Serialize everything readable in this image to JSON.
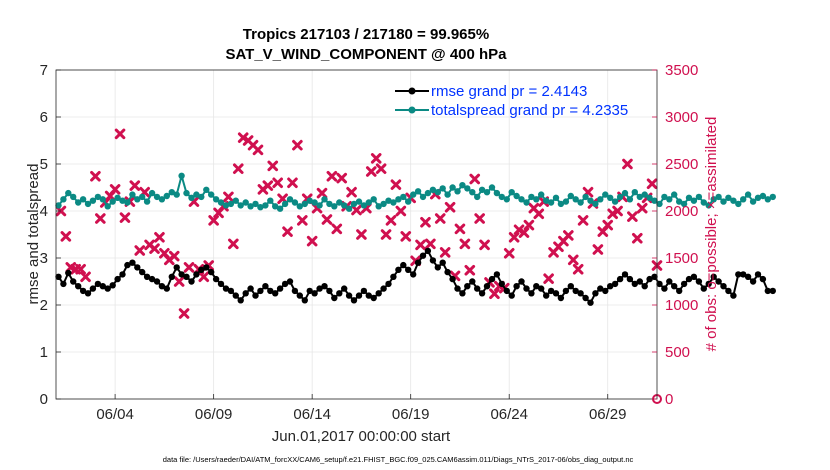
{
  "chart_data": {
    "type": "line",
    "title": "Tropics 217103 / 217180 = 99.965%",
    "subtitle": "SAT_V_WIND_COMPONENT @ 400 hPa",
    "xlabel": "Jun.01,2017 00:00:00 start",
    "ylabel": "rmse and totalspread",
    "ylabel_right": "# of obs: o=possible; ×=assimilated",
    "footnote": "data file: /Users/raeder/DAI/ATM_forcXX/CAM6_setup/f.e21.FHIST_BGC.f09_025.CAM6assim.011/Diags_NTrS_2017-06/obs_diag_output.nc",
    "xlim": [
      1,
      31.5
    ],
    "ylim": [
      0,
      7
    ],
    "ylim_right": [
      0,
      3500
    ],
    "x_ticks": [
      4,
      9,
      14,
      19,
      24,
      29
    ],
    "x_tick_labels": [
      "06/04",
      "06/09",
      "06/14",
      "06/19",
      "06/24",
      "06/29"
    ],
    "y_ticks": [
      0,
      1,
      2,
      3,
      4,
      5,
      6,
      7
    ],
    "y_ticks_right": [
      0,
      500,
      1000,
      1500,
      2000,
      2500,
      3000,
      3500
    ],
    "grid": true,
    "legend_position": "top-right",
    "colors": {
      "rmse": "#000000",
      "totalspread": "#0b8a84",
      "obs": "#d0104f",
      "legend_text": "#0033ff"
    },
    "series": [
      {
        "name": "rmse grand pr = 2.4143",
        "axis": "left",
        "x_start": 1.125,
        "x_step": 0.25,
        "values": [
          2.6,
          2.45,
          2.68,
          2.5,
          2.4,
          2.3,
          2.25,
          2.35,
          2.45,
          2.4,
          2.35,
          2.42,
          2.55,
          2.65,
          2.85,
          2.9,
          2.8,
          2.7,
          2.6,
          2.55,
          2.5,
          2.4,
          2.35,
          2.6,
          2.8,
          2.65,
          2.6,
          2.5,
          2.65,
          2.75,
          2.8,
          2.7,
          2.55,
          2.45,
          2.35,
          2.3,
          2.2,
          2.1,
          2.25,
          2.35,
          2.2,
          2.3,
          2.4,
          2.3,
          2.25,
          2.35,
          2.45,
          2.5,
          2.3,
          2.2,
          2.1,
          2.3,
          2.25,
          2.35,
          2.4,
          2.3,
          2.15,
          2.25,
          2.35,
          2.2,
          2.1,
          2.2,
          2.3,
          2.2,
          2.15,
          2.25,
          2.35,
          2.45,
          2.6,
          2.75,
          2.85,
          2.75,
          2.65,
          2.9,
          3.05,
          3.15,
          2.95,
          2.8,
          2.9,
          2.7,
          2.55,
          2.35,
          2.25,
          2.4,
          2.5,
          2.35,
          2.25,
          2.4,
          2.55,
          2.65,
          2.45,
          2.3,
          2.2,
          2.4,
          2.5,
          2.35,
          2.25,
          2.4,
          2.35,
          2.2,
          2.3,
          2.25,
          2.15,
          2.3,
          2.4,
          2.3,
          2.25,
          2.15,
          2.05,
          2.25,
          2.35,
          2.3,
          2.4,
          2.45,
          2.55,
          2.65,
          2.55,
          2.45,
          2.5,
          2.4,
          2.55,
          2.6,
          2.45,
          2.35,
          2.5,
          2.4,
          2.3,
          2.45,
          2.55,
          2.6,
          2.5,
          2.35,
          2.45,
          2.6,
          2.5,
          2.4,
          2.3,
          2.2,
          2.65,
          2.65,
          2.6,
          2.5,
          2.65,
          2.55,
          2.3,
          2.3
        ],
        "marker": "dot"
      },
      {
        "name": "totalspread grand pr = 4.2335",
        "axis": "left",
        "x_start": 1.125,
        "x_step": 0.25,
        "values": [
          4.12,
          4.25,
          4.38,
          4.3,
          4.18,
          4.25,
          4.15,
          4.22,
          4.3,
          4.25,
          4.1,
          4.2,
          4.28,
          4.22,
          4.18,
          4.35,
          4.25,
          4.3,
          4.2,
          4.38,
          4.3,
          4.25,
          4.32,
          4.4,
          4.35,
          4.75,
          4.38,
          4.28,
          4.35,
          4.3,
          4.45,
          4.35,
          4.25,
          4.18,
          4.12,
          4.15,
          4.22,
          4.12,
          4.18,
          4.1,
          4.15,
          4.08,
          4.12,
          4.22,
          4.1,
          4.05,
          4.15,
          4.25,
          4.18,
          4.1,
          4.15,
          4.22,
          4.18,
          4.12,
          4.25,
          4.15,
          4.1,
          4.18,
          4.12,
          4.05,
          4.15,
          4.2,
          4.12,
          4.18,
          4.25,
          4.1,
          4.15,
          4.22,
          4.18,
          4.25,
          4.3,
          4.2,
          4.35,
          4.42,
          4.3,
          4.38,
          4.45,
          4.4,
          4.48,
          4.35,
          4.5,
          4.42,
          4.55,
          4.48,
          4.4,
          4.3,
          4.45,
          4.4,
          4.5,
          4.38,
          4.3,
          4.25,
          4.4,
          4.32,
          4.25,
          4.18,
          4.3,
          4.25,
          4.35,
          4.22,
          4.18,
          4.28,
          4.15,
          4.2,
          4.32,
          4.25,
          4.18,
          4.3,
          4.22,
          4.15,
          4.25,
          4.35,
          4.28,
          4.2,
          4.3,
          4.38,
          4.25,
          4.4,
          4.3,
          4.35,
          4.28,
          4.22,
          4.15,
          4.3,
          4.25,
          4.35,
          4.2,
          4.15,
          4.28,
          4.22,
          4.3,
          4.18,
          4.12,
          4.25,
          4.3,
          4.2,
          4.28,
          4.22,
          4.15,
          4.25,
          4.35,
          4.2,
          4.28,
          4.32,
          4.25,
          4.3
        ],
        "marker": "dot"
      },
      {
        "name": "obs assimilated",
        "axis": "right",
        "marker": "x",
        "points": [
          [
            1.25,
            2000
          ],
          [
            1.5,
            1730
          ],
          [
            1.75,
            1400
          ],
          [
            2.0,
            1380
          ],
          [
            2.25,
            1380
          ],
          [
            2.5,
            1300
          ],
          [
            3.0,
            2370
          ],
          [
            3.25,
            1920
          ],
          [
            3.5,
            2090
          ],
          [
            3.75,
            2160
          ],
          [
            4.0,
            2230
          ],
          [
            4.25,
            2820
          ],
          [
            4.5,
            1930
          ],
          [
            4.75,
            2100
          ],
          [
            5.0,
            2270
          ],
          [
            5.25,
            1580
          ],
          [
            5.5,
            2200
          ],
          [
            5.75,
            1640
          ],
          [
            6.0,
            1600
          ],
          [
            6.25,
            1720
          ],
          [
            6.5,
            1550
          ],
          [
            6.75,
            1480
          ],
          [
            7.0,
            1520
          ],
          [
            7.25,
            1250
          ],
          [
            7.5,
            910
          ],
          [
            7.75,
            1400
          ],
          [
            8.0,
            2100
          ],
          [
            8.25,
            1380
          ],
          [
            8.5,
            1300
          ],
          [
            8.75,
            1420
          ],
          [
            9.0,
            1900
          ],
          [
            9.25,
            1980
          ],
          [
            9.5,
            2050
          ],
          [
            9.75,
            2150
          ],
          [
            10.0,
            1650
          ],
          [
            10.25,
            2450
          ],
          [
            10.5,
            2780
          ],
          [
            10.75,
            2750
          ],
          [
            11.0,
            2700
          ],
          [
            11.25,
            2650
          ],
          [
            11.5,
            2230
          ],
          [
            11.75,
            2270
          ],
          [
            12.0,
            2480
          ],
          [
            12.25,
            2300
          ],
          [
            12.5,
            2130
          ],
          [
            12.75,
            1780
          ],
          [
            13.0,
            2300
          ],
          [
            13.25,
            2700
          ],
          [
            13.5,
            1900
          ],
          [
            13.75,
            2130
          ],
          [
            14.0,
            1680
          ],
          [
            14.25,
            2030
          ],
          [
            14.5,
            2190
          ],
          [
            14.75,
            1910
          ],
          [
            15.0,
            2370
          ],
          [
            15.25,
            1810
          ],
          [
            15.5,
            2350
          ],
          [
            15.75,
            2050
          ],
          [
            16.0,
            2200
          ],
          [
            16.25,
            2010
          ],
          [
            16.5,
            1750
          ],
          [
            16.75,
            2030
          ],
          [
            17.0,
            2420
          ],
          [
            17.25,
            2560
          ],
          [
            17.5,
            2450
          ],
          [
            17.75,
            1750
          ],
          [
            18.0,
            1900
          ],
          [
            18.25,
            2280
          ],
          [
            18.5,
            2000
          ],
          [
            18.75,
            1730
          ],
          [
            19.0,
            2140
          ],
          [
            19.25,
            1470
          ],
          [
            19.5,
            1640
          ],
          [
            19.75,
            1880
          ],
          [
            20.0,
            1650
          ],
          [
            20.25,
            2180
          ],
          [
            20.5,
            1920
          ],
          [
            20.75,
            1560
          ],
          [
            21.0,
            2040
          ],
          [
            21.25,
            1310
          ],
          [
            21.5,
            1810
          ],
          [
            21.75,
            1650
          ],
          [
            22.0,
            1370
          ],
          [
            22.25,
            2340
          ],
          [
            22.5,
            1920
          ],
          [
            22.75,
            1640
          ],
          [
            23.0,
            1240
          ],
          [
            23.25,
            1120
          ],
          [
            23.5,
            1200
          ],
          [
            23.75,
            1180
          ],
          [
            24.0,
            1550
          ],
          [
            24.25,
            1720
          ],
          [
            24.5,
            1800
          ],
          [
            24.75,
            1770
          ],
          [
            25.0,
            1850
          ],
          [
            25.25,
            2030
          ],
          [
            25.5,
            1970
          ],
          [
            25.75,
            2100
          ],
          [
            26.0,
            1280
          ],
          [
            26.25,
            1560
          ],
          [
            26.5,
            1620
          ],
          [
            26.75,
            1680
          ],
          [
            27.0,
            1740
          ],
          [
            27.25,
            1480
          ],
          [
            27.5,
            1380
          ],
          [
            27.75,
            1900
          ],
          [
            28.0,
            2200
          ],
          [
            28.25,
            2080
          ],
          [
            28.5,
            1590
          ],
          [
            28.75,
            1780
          ],
          [
            29.0,
            1850
          ],
          [
            29.25,
            1970
          ],
          [
            29.5,
            2000
          ],
          [
            29.75,
            2150
          ],
          [
            30.0,
            2500
          ],
          [
            30.25,
            1940
          ],
          [
            30.5,
            1710
          ],
          [
            30.75,
            2030
          ],
          [
            31.0,
            2140
          ],
          [
            31.25,
            2290
          ],
          [
            31.5,
            1420
          ]
        ]
      },
      {
        "name": "obs possible",
        "axis": "right",
        "marker": "o",
        "points": [
          [
            31.5,
            0
          ]
        ]
      }
    ]
  }
}
